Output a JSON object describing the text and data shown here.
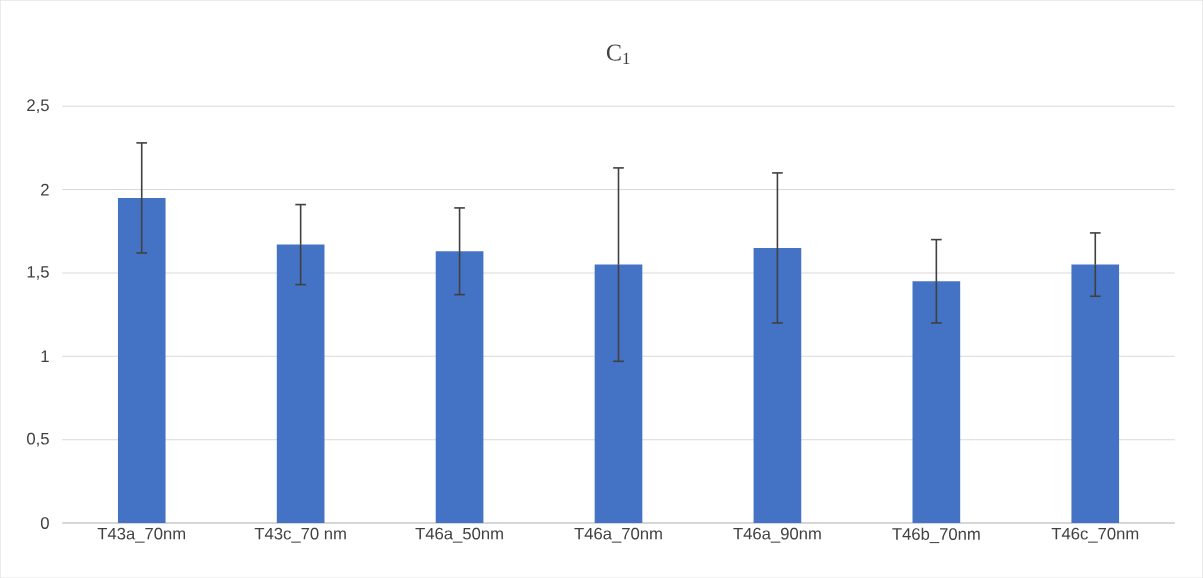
{
  "chart_data": {
    "type": "bar",
    "title": "C$_{1}$",
    "categories": [
      "T43a_70nm",
      "T43c_70 nm",
      "T46a_50nm",
      "T46a_70nm",
      "T46a_90nm",
      "T46b_70nm",
      "T46c_70nm"
    ],
    "values": [
      1.95,
      1.67,
      1.63,
      1.55,
      1.65,
      1.45,
      1.55
    ],
    "errors": [
      0.33,
      0.24,
      0.26,
      0.58,
      0.45,
      0.25,
      0.19
    ],
    "color": "#4472c4",
    "ylim": [
      0,
      2.5
    ],
    "yticks": [
      0,
      {
        "value": 0.5,
        "label": "0,5"
      },
      1,
      {
        "value": 1.5,
        "label": "1,5"
      },
      2,
      {
        "value": 2.5,
        "label": "2,5"
      }
    ],
    "grid": "y"
  }
}
